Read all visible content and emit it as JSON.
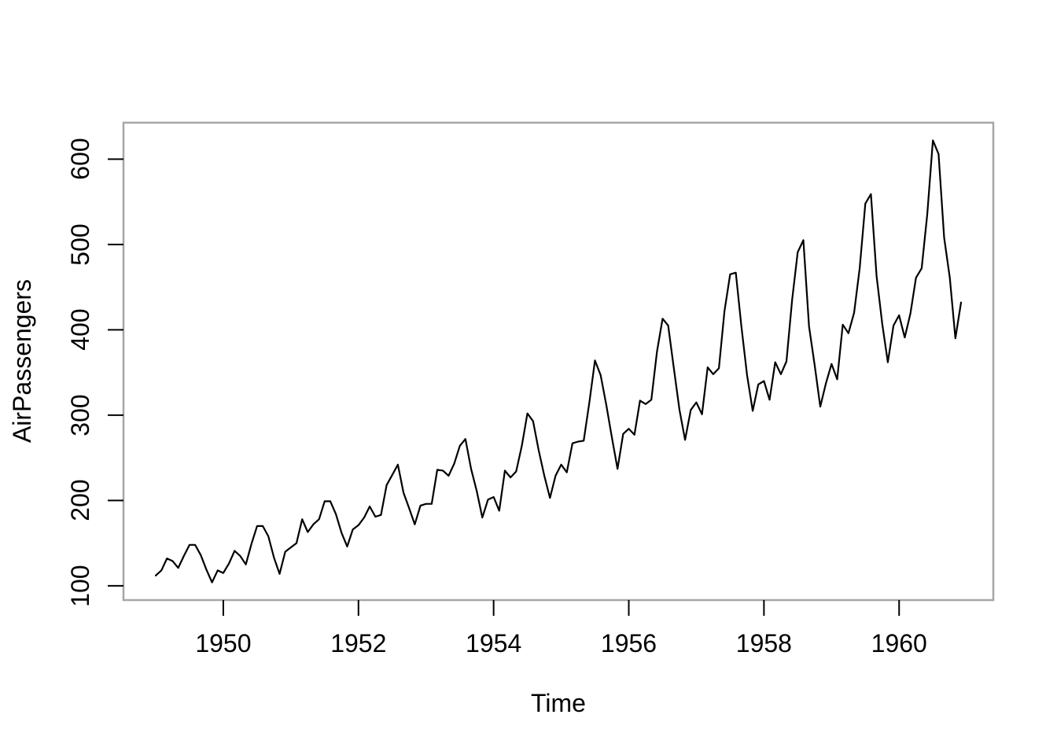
{
  "chart_data": {
    "type": "line",
    "title": "",
    "xlabel": "Time",
    "ylabel": "AirPassengers",
    "series_name": "AirPassengers",
    "x_start_year": 1949,
    "frequency": 12,
    "values": [
      112,
      118,
      132,
      129,
      121,
      135,
      148,
      148,
      136,
      119,
      104,
      118,
      115,
      126,
      141,
      135,
      125,
      149,
      170,
      170,
      158,
      133,
      114,
      140,
      145,
      150,
      178,
      163,
      172,
      178,
      199,
      199,
      184,
      162,
      146,
      166,
      171,
      180,
      193,
      181,
      183,
      218,
      230,
      242,
      209,
      191,
      172,
      194,
      196,
      196,
      236,
      235,
      229,
      243,
      264,
      272,
      237,
      211,
      180,
      201,
      204,
      188,
      235,
      227,
      234,
      264,
      302,
      293,
      259,
      229,
      203,
      229,
      242,
      233,
      267,
      269,
      270,
      315,
      364,
      347,
      312,
      274,
      237,
      278,
      284,
      277,
      317,
      313,
      318,
      374,
      413,
      405,
      355,
      306,
      271,
      306,
      315,
      301,
      356,
      348,
      355,
      422,
      465,
      467,
      404,
      347,
      305,
      336,
      340,
      318,
      362,
      348,
      363,
      435,
      491,
      505,
      404,
      359,
      310,
      337,
      360,
      342,
      406,
      396,
      420,
      472,
      548,
      559,
      463,
      407,
      362,
      405,
      417,
      391,
      419,
      461,
      472,
      535,
      622,
      606,
      508,
      461,
      390,
      432
    ],
    "x_ticks": [
      1950,
      1952,
      1954,
      1956,
      1958,
      1960
    ],
    "y_ticks": [
      100,
      200,
      300,
      400,
      500,
      600
    ],
    "xlim": [
      1948.5229,
      1961.3937
    ],
    "ylim": [
      83.28,
      642.72
    ],
    "grid": false,
    "legend": false,
    "line_color": "#000000",
    "box_color": "#a6a6a6",
    "tick_color": "#000000",
    "text_color": "#000000",
    "background_color": "#ffffff"
  }
}
